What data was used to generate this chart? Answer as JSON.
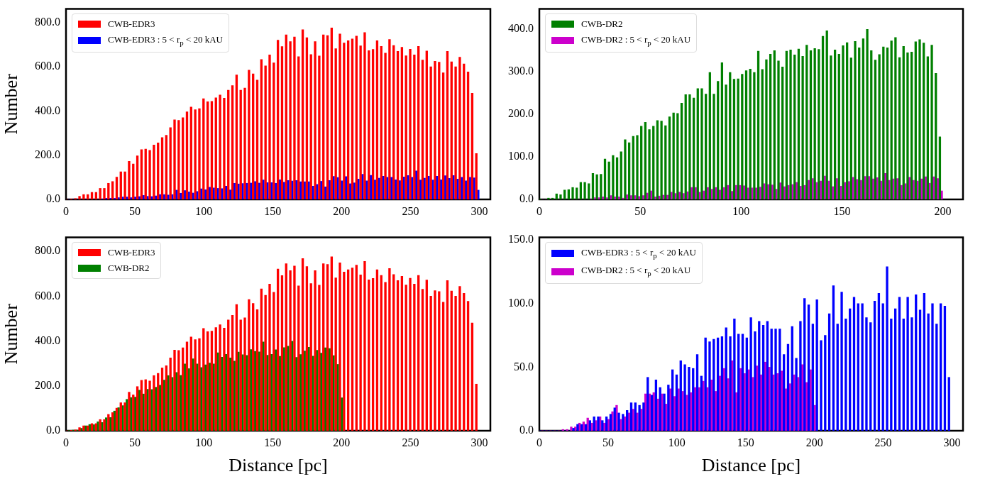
{
  "chart_data": [
    {
      "type": "histogram",
      "ylabel": "Number",
      "legend": "top left",
      "xlim": [
        0,
        308
      ],
      "ylim": [
        0,
        862
      ],
      "xticks": [
        0,
        50,
        100,
        150,
        200,
        250,
        300
      ],
      "yticks": [
        {
          "value": 0,
          "label": "0.0"
        },
        {
          "value": 200,
          "label": "200.0"
        },
        {
          "value": 400,
          "label": "400.0"
        },
        {
          "value": 600,
          "label": "600.0"
        },
        {
          "value": 800,
          "label": "800.0"
        }
      ],
      "bins": [
        0,
        3,
        6,
        9,
        12,
        15,
        18,
        21,
        24,
        27,
        30,
        33,
        36,
        39,
        42,
        45,
        48,
        51,
        54,
        57,
        60,
        63,
        66,
        69,
        72,
        75,
        78,
        81,
        84,
        87,
        90,
        93,
        96,
        99,
        102,
        105,
        108,
        111,
        114,
        117,
        120,
        123,
        126,
        129,
        132,
        135,
        138,
        141,
        144,
        147,
        150,
        153,
        156,
        159,
        162,
        165,
        168,
        171,
        174,
        177,
        180,
        183,
        186,
        189,
        192,
        195,
        198,
        201,
        204,
        207,
        210,
        213,
        216,
        219,
        222,
        225,
        228,
        231,
        234,
        237,
        240,
        243,
        246,
        249,
        252,
        255,
        258,
        261,
        264,
        267,
        270,
        273,
        276,
        279,
        282,
        285,
        288,
        291,
        294,
        297,
        300
      ],
      "series": [
        {
          "name": "CWB-EDR3",
          "color": "#ff0000",
          "values": [
            0,
            2,
            4,
            14,
            22,
            22,
            32,
            32,
            50,
            50,
            73,
            81,
            101,
            125,
            125,
            172,
            160,
            197,
            225,
            228,
            222,
            246,
            256,
            280,
            290,
            325,
            360,
            358,
            370,
            396,
            418,
            406,
            411,
            456,
            442,
            444,
            460,
            473,
            458,
            494,
            515,
            563,
            494,
            504,
            585,
            568,
            540,
            633,
            604,
            654,
            618,
            721,
            692,
            745,
            714,
            735,
            646,
            768,
            732,
            656,
            714,
            649,
            745,
            742,
            776,
            682,
            749,
            708,
            718,
            726,
            739,
            695,
            755,
            673,
            679,
            718,
            693,
            662,
            724,
            697,
            670,
            689,
            650,
            680,
            654,
            693,
            631,
            672,
            600,
            625,
            621,
            573,
            670,
            623,
            600,
            644,
            613,
            577,
            481,
            208
          ]
        },
        {
          "name": "CWB-EDR3 : 5 < r$_{p}$ < 20 kAU",
          "color": "#0000ff",
          "values": [
            0,
            0,
            0,
            0,
            0,
            0,
            0,
            0,
            2,
            5,
            5,
            5,
            8,
            11,
            11,
            8,
            11,
            13,
            18,
            14,
            13,
            16,
            22,
            22,
            20,
            22,
            42,
            28,
            40,
            34,
            29,
            36,
            48,
            44,
            55,
            52,
            50,
            49,
            60,
            43,
            73,
            70,
            72,
            73,
            74,
            81,
            74,
            88,
            76,
            76,
            73,
            89,
            78,
            86,
            83,
            86,
            80,
            80,
            80,
            60,
            68,
            82,
            57,
            86,
            104,
            99,
            84,
            103,
            71,
            75,
            92,
            114,
            84,
            109,
            88,
            96,
            105,
            100,
            100,
            89,
            85,
            102,
            108,
            100,
            129,
            88,
            96,
            105,
            88,
            105,
            89,
            107,
            95,
            108,
            92,
            100,
            84,
            100,
            98,
            42
          ]
        }
      ]
    },
    {
      "type": "histogram",
      "legend": "top left",
      "xlim": [
        0,
        210
      ],
      "ylim": [
        0,
        447
      ],
      "xticks": [
        0,
        50,
        100,
        150,
        200
      ],
      "yticks": [
        {
          "value": 0,
          "label": "0.0"
        },
        {
          "value": 100,
          "label": "100.0"
        },
        {
          "value": 200,
          "label": "200.0"
        },
        {
          "value": 300,
          "label": "300.0"
        },
        {
          "value": 400,
          "label": "400.0"
        }
      ],
      "bins": [
        0,
        2,
        4,
        6,
        8,
        10,
        12,
        14,
        16,
        18,
        20,
        22,
        24,
        26,
        28,
        30,
        32,
        34,
        36,
        38,
        40,
        42,
        44,
        46,
        48,
        50,
        52,
        54,
        56,
        58,
        60,
        62,
        64,
        66,
        68,
        70,
        72,
        74,
        76,
        78,
        80,
        82,
        84,
        86,
        88,
        90,
        92,
        94,
        96,
        98,
        100,
        102,
        104,
        106,
        108,
        110,
        112,
        114,
        116,
        118,
        120,
        122,
        124,
        126,
        128,
        130,
        132,
        134,
        136,
        138,
        140,
        142,
        144,
        146,
        148,
        150,
        152,
        154,
        156,
        158,
        160,
        162,
        164,
        166,
        168,
        170,
        172,
        174,
        176,
        178,
        180,
        182,
        184,
        186,
        188,
        190,
        192,
        194,
        196,
        198,
        200
      ],
      "series": [
        {
          "name": "CWB-DR2",
          "color": "#008000",
          "values": [
            1,
            0,
            3,
            3,
            13,
            11,
            22,
            23,
            28,
            27,
            40,
            40,
            37,
            61,
            58,
            59,
            95,
            88,
            103,
            98,
            112,
            140,
            133,
            148,
            150,
            172,
            181,
            164,
            172,
            185,
            184,
            173,
            194,
            203,
            202,
            226,
            246,
            246,
            238,
            260,
            260,
            247,
            298,
            247,
            277,
            321,
            269,
            298,
            282,
            283,
            294,
            302,
            306,
            298,
            348,
            305,
            328,
            341,
            349,
            325,
            311,
            348,
            351,
            339,
            353,
            336,
            362,
            349,
            354,
            352,
            383,
            396,
            337,
            351,
            341,
            361,
            368,
            332,
            371,
            356,
            377,
            399,
            349,
            327,
            340,
            358,
            356,
            372,
            380,
            333,
            359,
            344,
            346,
            370,
            375,
            367,
            335,
            362,
            296,
            147
          ]
        },
        {
          "name": "CWB-DR2 : 5 < r$_{p}$ < 20 kAU",
          "color": "#cc00cc",
          "values": [
            0,
            0,
            0,
            0,
            0,
            0,
            0,
            0,
            0,
            0,
            0,
            0,
            1,
            4,
            4,
            6,
            4,
            9,
            6,
            6,
            3,
            11,
            9,
            9,
            7,
            9,
            15,
            20,
            6,
            8,
            10,
            10,
            17,
            14,
            17,
            14,
            18,
            28,
            28,
            17,
            20,
            28,
            24,
            28,
            22,
            28,
            33,
            19,
            33,
            33,
            32,
            27,
            27,
            27,
            29,
            37,
            35,
            34,
            24,
            39,
            30,
            33,
            35,
            40,
            31,
            33,
            45,
            49,
            40,
            43,
            55,
            43,
            30,
            49,
            31,
            40,
            42,
            52,
            47,
            45,
            54,
            54,
            48,
            51,
            43,
            61,
            45,
            48,
            49,
            33,
            37,
            52,
            45,
            43,
            48,
            53,
            38,
            53,
            49,
            20
          ]
        }
      ]
    },
    {
      "type": "histogram",
      "xlabel": "Distance [pc]",
      "ylabel": "Number",
      "legend": "top left",
      "xlim": [
        0,
        308
      ],
      "ylim": [
        0,
        862
      ],
      "xticks": [
        0,
        50,
        100,
        150,
        200,
        250,
        300
      ],
      "yticks": [
        {
          "value": 0,
          "label": "0.0"
        },
        {
          "value": 200,
          "label": "200.0"
        },
        {
          "value": 400,
          "label": "400.0"
        },
        {
          "value": 600,
          "label": "600.0"
        },
        {
          "value": 800,
          "label": "800.0"
        }
      ],
      "bins": [
        0,
        3,
        6,
        9,
        12,
        15,
        18,
        21,
        24,
        27,
        30,
        33,
        36,
        39,
        42,
        45,
        48,
        51,
        54,
        57,
        60,
        63,
        66,
        69,
        72,
        75,
        78,
        81,
        84,
        87,
        90,
        93,
        96,
        99,
        102,
        105,
        108,
        111,
        114,
        117,
        120,
        123,
        126,
        129,
        132,
        135,
        138,
        141,
        144,
        147,
        150,
        153,
        156,
        159,
        162,
        165,
        168,
        171,
        174,
        177,
        180,
        183,
        186,
        189,
        192,
        195,
        198,
        201,
        204,
        207,
        210,
        213,
        216,
        219,
        222,
        225,
        228,
        231,
        234,
        237,
        240,
        243,
        246,
        249,
        252,
        255,
        258,
        261,
        264,
        267,
        270,
        273,
        276,
        279,
        282,
        285,
        288,
        291,
        294,
        297,
        300
      ],
      "series": [
        {
          "name": "CWB-EDR3",
          "color": "#ff0000",
          "values": [
            0,
            2,
            4,
            14,
            22,
            22,
            32,
            32,
            50,
            50,
            73,
            81,
            101,
            125,
            125,
            172,
            160,
            197,
            225,
            228,
            222,
            246,
            256,
            280,
            290,
            325,
            360,
            358,
            370,
            396,
            418,
            406,
            411,
            456,
            442,
            444,
            460,
            473,
            458,
            494,
            515,
            563,
            494,
            504,
            585,
            568,
            540,
            633,
            604,
            654,
            618,
            721,
            692,
            745,
            714,
            735,
            646,
            768,
            732,
            656,
            714,
            649,
            745,
            742,
            776,
            682,
            749,
            708,
            718,
            726,
            739,
            695,
            755,
            673,
            679,
            718,
            693,
            662,
            724,
            697,
            670,
            689,
            650,
            680,
            654,
            693,
            631,
            672,
            600,
            625,
            621,
            573,
            670,
            623,
            600,
            644,
            613,
            577,
            481,
            208
          ]
        },
        {
          "name": "CWB-DR2",
          "color": "#008000",
          "values": [
            1,
            3,
            3,
            11,
            22,
            28,
            27,
            40,
            37,
            58,
            59,
            88,
            103,
            112,
            140,
            148,
            150,
            181,
            164,
            185,
            184,
            194,
            203,
            226,
            246,
            238,
            260,
            247,
            298,
            277,
            321,
            298,
            282,
            294,
            302,
            298,
            348,
            328,
            341,
            325,
            311,
            351,
            339,
            336,
            362,
            354,
            352,
            396,
            337,
            341,
            361,
            332,
            371,
            377,
            399,
            327,
            340,
            356,
            372,
            333,
            359,
            346,
            370,
            367,
            335,
            296,
            147,
            null,
            null,
            null,
            null,
            null,
            null,
            null,
            null,
            null,
            null,
            null,
            null,
            null,
            null,
            null,
            null,
            null,
            null,
            null,
            null,
            null,
            null,
            null,
            null,
            null,
            null,
            null,
            null,
            null,
            null,
            null,
            null,
            null
          ]
        }
      ]
    },
    {
      "type": "histogram",
      "xlabel": "Distance [pc]",
      "legend": "top left",
      "xlim": [
        0,
        308
      ],
      "ylim": [
        0,
        152
      ],
      "xticks": [
        0,
        50,
        100,
        150,
        200,
        250,
        300
      ],
      "yticks": [
        {
          "value": 0,
          "label": "0.0"
        },
        {
          "value": 50,
          "label": "50.0"
        },
        {
          "value": 100,
          "label": "100.0"
        },
        {
          "value": 150,
          "label": "150.0"
        }
      ],
      "bins": [
        0,
        3,
        6,
        9,
        12,
        15,
        18,
        21,
        24,
        27,
        30,
        33,
        36,
        39,
        42,
        45,
        48,
        51,
        54,
        57,
        60,
        63,
        66,
        69,
        72,
        75,
        78,
        81,
        84,
        87,
        90,
        93,
        96,
        99,
        102,
        105,
        108,
        111,
        114,
        117,
        120,
        123,
        126,
        129,
        132,
        135,
        138,
        141,
        144,
        147,
        150,
        153,
        156,
        159,
        162,
        165,
        168,
        171,
        174,
        177,
        180,
        183,
        186,
        189,
        192,
        195,
        198,
        201,
        204,
        207,
        210,
        213,
        216,
        219,
        222,
        225,
        228,
        231,
        234,
        237,
        240,
        243,
        246,
        249,
        252,
        255,
        258,
        261,
        264,
        267,
        270,
        273,
        276,
        279,
        282,
        285,
        288,
        291,
        294,
        297,
        300
      ],
      "series": [
        {
          "name": "CWB-EDR3 : 5 < r$_{p}$ < 20 kAU",
          "color": "#0000ff",
          "values": [
            0,
            0,
            0,
            0,
            0,
            0,
            0,
            0,
            2,
            5,
            5,
            5,
            8,
            11,
            11,
            8,
            11,
            13,
            18,
            14,
            13,
            16,
            22,
            22,
            20,
            22,
            42,
            28,
            40,
            34,
            29,
            36,
            48,
            44,
            55,
            52,
            50,
            49,
            60,
            43,
            73,
            70,
            72,
            73,
            74,
            81,
            74,
            88,
            76,
            76,
            73,
            89,
            78,
            86,
            83,
            86,
            80,
            80,
            80,
            60,
            68,
            82,
            57,
            86,
            104,
            99,
            84,
            103,
            71,
            75,
            92,
            114,
            84,
            109,
            88,
            96,
            105,
            100,
            100,
            89,
            85,
            102,
            108,
            100,
            129,
            88,
            96,
            105,
            88,
            105,
            89,
            107,
            95,
            108,
            92,
            100,
            84,
            100,
            98,
            42
          ]
        },
        {
          "name": "CWB-DR2 : 5 < r$_{p}$ < 20 kAU",
          "color": "#cc00cc",
          "values": [
            0,
            0,
            0,
            0,
            0,
            1,
            1,
            3,
            3,
            6,
            7,
            10,
            6,
            8,
            11,
            6,
            9,
            15,
            20,
            9,
            11,
            14,
            17,
            14,
            17,
            29,
            29,
            30,
            25,
            29,
            21,
            33,
            27,
            33,
            31,
            28,
            30,
            34,
            34,
            39,
            34,
            40,
            31,
            43,
            49,
            41,
            55,
            30,
            49,
            45,
            48,
            42,
            51,
            44,
            54,
            50,
            44,
            45,
            47,
            33,
            37,
            44,
            42,
            52,
            38,
            48,
            20,
            null,
            null,
            null,
            null,
            null,
            null,
            null,
            null,
            null,
            null,
            null,
            null,
            null,
            null,
            null,
            null,
            null,
            null,
            null,
            null,
            null,
            null,
            null,
            null,
            null,
            null,
            null,
            null,
            null,
            null,
            null,
            null,
            null
          ]
        }
      ]
    }
  ]
}
